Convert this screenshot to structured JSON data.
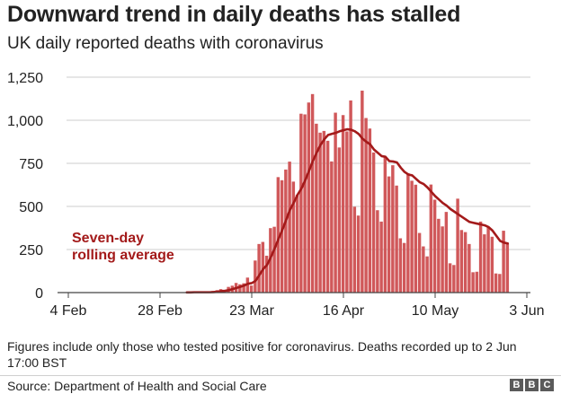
{
  "title": "Downward trend in daily deaths has stalled",
  "subtitle": "UK daily reported deaths with coronavirus",
  "note": "Figures include only those who tested positive for coronavirus. Deaths recorded up to 2 Jun 17:00 BST",
  "source": "Source: Department of Health and Social Care",
  "logo": [
    "B",
    "B",
    "C"
  ],
  "chart_data": {
    "type": "bar",
    "x_start": "2020-02-04",
    "x_end": "2020-06-03",
    "y_ticks": [
      0,
      250,
      500,
      750,
      1000,
      1250
    ],
    "y_tick_labels": [
      "0",
      "250",
      "500",
      "750",
      "1,000",
      "1,250"
    ],
    "x_ticks": [
      "2020-02-04",
      "2020-02-28",
      "2020-03-23",
      "2020-04-16",
      "2020-05-10",
      "2020-06-03"
    ],
    "x_tick_labels": [
      "4 Feb",
      "28 Feb",
      "23 Mar",
      "16 Apr",
      "10 May",
      "3 Jun"
    ],
    "ylim": [
      0,
      1300
    ],
    "grid": true,
    "colors": {
      "bars": "#d0585a",
      "bar_edge": "#ffffff",
      "line": "#a31a1a",
      "annotation": "#a31a1a",
      "grid": "#cccccc"
    },
    "annotation": {
      "text": [
        "Seven-day",
        "rolling average"
      ]
    },
    "series": [
      {
        "type": "bar",
        "start_date": "2020-03-06",
        "values": [
          1,
          2,
          1,
          3,
          2,
          4,
          1,
          10,
          14,
          20,
          16,
          33,
          40,
          56,
          48,
          54,
          87,
          41,
          186,
          282,
          294,
          214,
          374,
          382,
          670,
          652,
          714,
          760,
          644,
          568,
          1038,
          1034,
          1103,
          1152,
          980,
          928,
          938,
          881,
          761,
          1044,
          842,
          1030,
          935,
          1115,
          498,
          447,
          1172,
          1013,
          952,
          813,
          478,
          412,
          787,
          674,
          739,
          621,
          315,
          288,
          693,
          649,
          626,
          346,
          268,
          210,
          627,
          539,
          428,
          384,
          468,
          170,
          160,
          545,
          363,
          351,
          282,
          118,
          121,
          412,
          338,
          377,
          324,
          111,
          108,
          359,
          285
        ],
        "fills": [
          "#f7f7f7",
          "#efefef",
          "#e7e7e7",
          "#dfdfdf",
          "#d7d7d7",
          "#cfcfcf",
          "#c7c7c7",
          "#bfbfbf",
          "#b7b7b7",
          "#afafaf",
          "#a7a7a7",
          "#9f9f9f",
          "#979797",
          "#8f8f8f",
          "#878787",
          "#7f7f7f",
          "#777777",
          "#6f6f6f",
          "#676767",
          "#5f5f5f",
          "#575757",
          "#4f4f4f",
          "#474747",
          "#3f3f3f",
          "#373737",
          "#2f2f2f",
          "#272727",
          "#1f1f1f",
          "#171717",
          "#0f0f0f"
        ]
      },
      {
        "type": "line",
        "name": "Seven-day rolling average",
        "start_date": "2020-03-06",
        "values": [
          1,
          1,
          2,
          2,
          2,
          2,
          2,
          3,
          5,
          8,
          10,
          14,
          20,
          27,
          33,
          41,
          51,
          55,
          68,
          102,
          137,
          160,
          205,
          256,
          311,
          363,
          421,
          480,
          522,
          568,
          603,
          652,
          707,
          763,
          812,
          857,
          890,
          915,
          921,
          927,
          936,
          942,
          948,
          945,
          936,
          920,
          893,
          875,
          860,
          830,
          811,
          792,
          788,
          763,
          761,
          755,
          725,
          700,
          685,
          680,
          660,
          640,
          630,
          610,
          585,
          560,
          540,
          520,
          505,
          485,
          470,
          455,
          440,
          425,
          410,
          405,
          400,
          395,
          390,
          380,
          360,
          330,
          300,
          290,
          285
        ]
      }
    ]
  }
}
